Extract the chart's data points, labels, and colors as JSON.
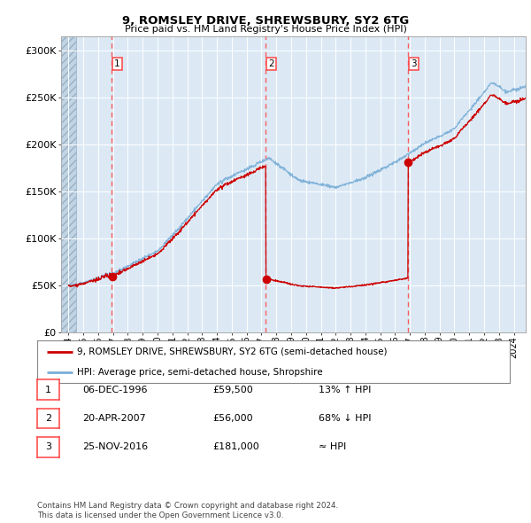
{
  "title1": "9, ROMSLEY DRIVE, SHREWSBURY, SY2 6TG",
  "title2": "Price paid vs. HM Land Registry's House Price Index (HPI)",
  "ylabel_ticks": [
    "£0",
    "£50K",
    "£100K",
    "£150K",
    "£200K",
    "£250K",
    "£300K"
  ],
  "ytick_values": [
    0,
    50000,
    100000,
    150000,
    200000,
    250000,
    300000
  ],
  "ylim": [
    0,
    315000
  ],
  "xlim_start": 1993.5,
  "xlim_end": 2024.8,
  "hpi_color": "#7aaed6",
  "price_color": "#cc0000",
  "bg_color": "#dce9f5",
  "hatch_color": "#b8cfe0",
  "grid_color": "#ffffff",
  "dashed_line_color": "#ff4444",
  "transaction1_date": 1996.92,
  "transaction1_price": 59500,
  "transaction2_date": 2007.3,
  "transaction2_price": 56000,
  "transaction3_date": 2016.9,
  "transaction3_price": 181000,
  "legend_label1": "9, ROMSLEY DRIVE, SHREWSBURY, SY2 6TG (semi-detached house)",
  "legend_label2": "HPI: Average price, semi-detached house, Shropshire",
  "table_rows": [
    [
      "1",
      "06-DEC-1996",
      "£59,500",
      "13% ↑ HPI"
    ],
    [
      "2",
      "20-APR-2007",
      "£56,000",
      "68% ↓ HPI"
    ],
    [
      "3",
      "25-NOV-2016",
      "£181,000",
      "≈ HPI"
    ]
  ],
  "footnote1": "Contains HM Land Registry data © Crown copyright and database right 2024.",
  "footnote2": "This data is licensed under the Open Government Licence v3.0.",
  "xtick_years": [
    1994,
    1995,
    1996,
    1997,
    1998,
    1999,
    2000,
    2001,
    2002,
    2003,
    2004,
    2005,
    2006,
    2007,
    2008,
    2009,
    2010,
    2011,
    2012,
    2013,
    2014,
    2015,
    2016,
    2017,
    2018,
    2019,
    2020,
    2021,
    2022,
    2023,
    2024
  ]
}
